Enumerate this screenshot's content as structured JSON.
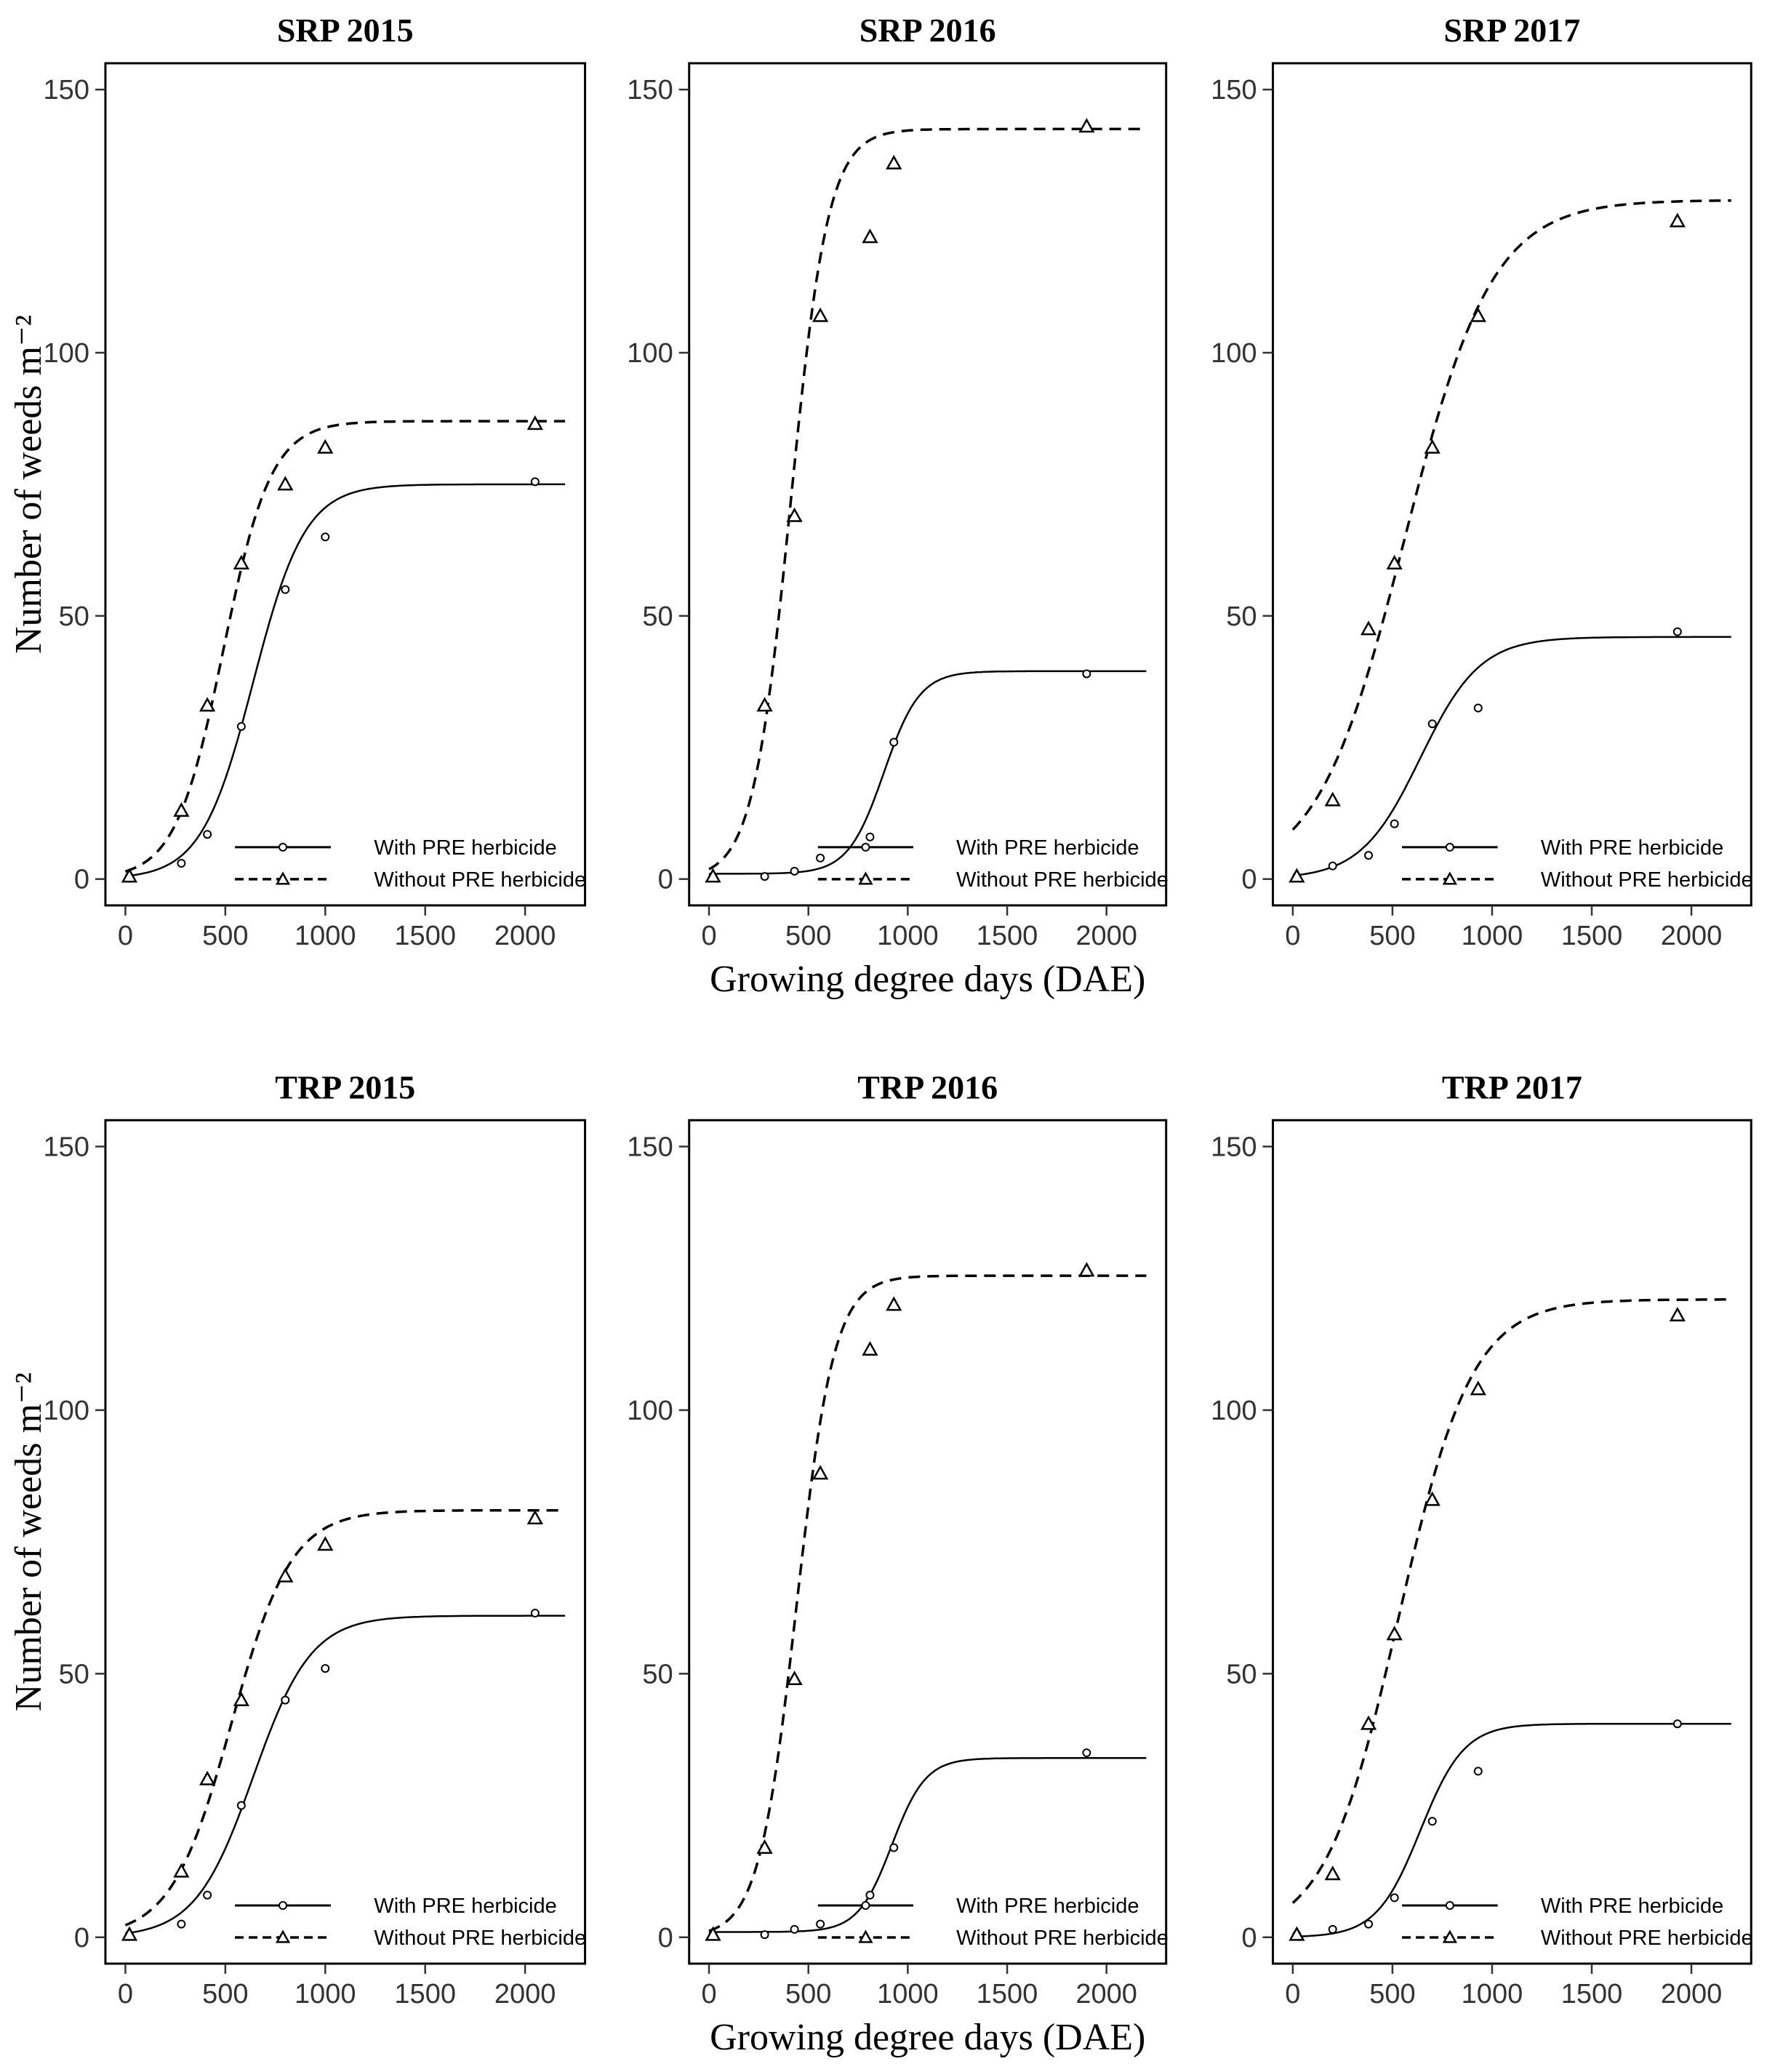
{
  "chart_data": [
    {
      "type": "line",
      "title": "SRP 2015",
      "ylabel": "Number of weeds m⁻²",
      "xlabel": "",
      "xlim": [
        -100,
        2300
      ],
      "ylim": [
        -5,
        155
      ],
      "xticks": [
        "0",
        "500",
        "1000",
        "1500",
        "2000"
      ],
      "yticks": [
        "0",
        "50",
        "100",
        "150"
      ],
      "grid": false,
      "legend_position": "bottom-right",
      "series": [
        {
          "name": "With PRE herbicide",
          "line": "solid",
          "marker": "circle",
          "points": [
            [
              20,
              0.5
            ],
            [
              280,
              3
            ],
            [
              410,
              8.5
            ],
            [
              580,
              29
            ],
            [
              800,
              55
            ],
            [
              1000,
              65
            ],
            [
              2050,
              75.5
            ]
          ],
          "curve": {
            "asym": 75,
            "mid": 640,
            "scale": 130
          }
        },
        {
          "name": "Without PRE herbicide",
          "line": "dashed",
          "marker": "triangle",
          "points": [
            [
              20,
              0.5
            ],
            [
              280,
              13
            ],
            [
              410,
              33
            ],
            [
              580,
              60
            ],
            [
              800,
              75
            ],
            [
              1000,
              82
            ],
            [
              2050,
              86.5
            ]
          ],
          "curve": {
            "asym": 87,
            "mid": 490,
            "scale": 120
          }
        }
      ]
    },
    {
      "type": "line",
      "title": "SRP 2016",
      "ylabel": "",
      "xlabel": "Growing degree days (DAE)",
      "xlim": [
        -100,
        2300
      ],
      "ylim": [
        -5,
        155
      ],
      "xticks": [
        "0",
        "500",
        "1000",
        "1500",
        "2000"
      ],
      "yticks": [
        "0",
        "50",
        "100",
        "150"
      ],
      "grid": false,
      "legend_position": "bottom-right",
      "series": [
        {
          "name": "With PRE herbicide",
          "line": "solid",
          "marker": "circle",
          "points": [
            [
              20,
              0.5
            ],
            [
              280,
              0.5
            ],
            [
              430,
              1.5
            ],
            [
              560,
              4
            ],
            [
              810,
              8
            ],
            [
              930,
              26
            ],
            [
              1900,
              39
            ]
          ],
          "curve": {
            "asym": 39.5,
            "mid": 880,
            "scale": 90,
            "base": 1
          }
        },
        {
          "name": "Without PRE herbicide",
          "line": "dashed",
          "marker": "triangle",
          "points": [
            [
              20,
              0.5
            ],
            [
              280,
              33
            ],
            [
              430,
              69
            ],
            [
              560,
              107
            ],
            [
              810,
              122
            ],
            [
              930,
              136
            ],
            [
              1900,
              143
            ]
          ],
          "curve": {
            "asym": 142.5,
            "mid": 410,
            "scale": 95
          }
        }
      ]
    },
    {
      "type": "line",
      "title": "SRP 2017",
      "ylabel": "",
      "xlabel": "",
      "xlim": [
        -100,
        2300
      ],
      "ylim": [
        -5,
        155
      ],
      "xticks": [
        "0",
        "500",
        "1000",
        "1500",
        "2000"
      ],
      "yticks": [
        "0",
        "50",
        "100",
        "150"
      ],
      "grid": false,
      "legend_position": "bottom-right",
      "series": [
        {
          "name": "With PRE herbicide",
          "line": "solid",
          "marker": "circle",
          "points": [
            [
              20,
              0.5
            ],
            [
              200,
              2.5
            ],
            [
              380,
              4.5
            ],
            [
              510,
              10.5
            ],
            [
              700,
              29.5
            ],
            [
              930,
              32.5
            ],
            [
              1930,
              47
            ]
          ],
          "curve": {
            "asym": 46,
            "mid": 640,
            "scale": 150
          }
        },
        {
          "name": "Without PRE herbicide",
          "line": "dashed",
          "marker": "triangle",
          "points": [
            [
              20,
              0.5
            ],
            [
              200,
              15
            ],
            [
              380,
              47.5
            ],
            [
              510,
              60
            ],
            [
              700,
              82
            ],
            [
              930,
              107
            ],
            [
              1930,
              125
            ]
          ],
          "curve": {
            "asym": 129,
            "mid": 560,
            "scale": 220
          }
        }
      ]
    },
    {
      "type": "line",
      "title": "TRP 2015",
      "ylabel": "Number of weeds m⁻²",
      "xlabel": "",
      "xlim": [
        -100,
        2300
      ],
      "ylim": [
        -5,
        155
      ],
      "xticks": [
        "0",
        "500",
        "1000",
        "1500",
        "2000"
      ],
      "yticks": [
        "0",
        "50",
        "100",
        "150"
      ],
      "grid": false,
      "legend_position": "bottom-right",
      "series": [
        {
          "name": "With PRE herbicide",
          "line": "solid",
          "marker": "circle",
          "points": [
            [
              20,
              0.5
            ],
            [
              280,
              2.5
            ],
            [
              410,
              8
            ],
            [
              580,
              25
            ],
            [
              800,
              45
            ],
            [
              1000,
              51
            ],
            [
              2050,
              61.5
            ]
          ],
          "curve": {
            "asym": 61,
            "mid": 640,
            "scale": 145
          }
        },
        {
          "name": "Without PRE herbicide",
          "line": "dashed",
          "marker": "triangle",
          "points": [
            [
              20,
              0.5
            ],
            [
              280,
              12.5
            ],
            [
              410,
              30
            ],
            [
              580,
              45
            ],
            [
              800,
              68.5
            ],
            [
              1000,
              74.5
            ],
            [
              2050,
              79.5
            ]
          ],
          "curve": {
            "asym": 81,
            "mid": 530,
            "scale": 150
          }
        }
      ]
    },
    {
      "type": "line",
      "title": "TRP 2016",
      "ylabel": "",
      "xlabel": "Growing degree days (DAE)",
      "xlim": [
        -100,
        2300
      ],
      "ylim": [
        -5,
        155
      ],
      "xticks": [
        "0",
        "500",
        "1000",
        "1500",
        "2000"
      ],
      "yticks": [
        "0",
        "50",
        "100",
        "150"
      ],
      "grid": false,
      "legend_position": "bottom-right",
      "series": [
        {
          "name": "With PRE herbicide",
          "line": "solid",
          "marker": "circle",
          "points": [
            [
              20,
              0.5
            ],
            [
              280,
              0.5
            ],
            [
              430,
              1.5
            ],
            [
              560,
              2.5
            ],
            [
              810,
              8
            ],
            [
              930,
              17
            ],
            [
              1900,
              35
            ]
          ],
          "curve": {
            "asym": 34,
            "mid": 920,
            "scale": 85,
            "base": 1
          }
        },
        {
          "name": "Without PRE herbicide",
          "line": "dashed",
          "marker": "triangle",
          "points": [
            [
              20,
              0.5
            ],
            [
              280,
              17
            ],
            [
              430,
              49
            ],
            [
              560,
              88
            ],
            [
              810,
              111.5
            ],
            [
              930,
              120
            ],
            [
              1900,
              126.5
            ]
          ],
          "curve": {
            "asym": 125.5,
            "mid": 440,
            "scale": 95
          }
        }
      ]
    },
    {
      "type": "line",
      "title": "TRP 2017",
      "ylabel": "",
      "xlabel": "",
      "xlim": [
        -100,
        2300
      ],
      "ylim": [
        -5,
        155
      ],
      "xticks": [
        "0",
        "500",
        "1000",
        "1500",
        "2000"
      ],
      "yticks": [
        "0",
        "50",
        "100",
        "150"
      ],
      "grid": false,
      "legend_position": "bottom-right",
      "series": [
        {
          "name": "With PRE herbicide",
          "line": "solid",
          "marker": "circle",
          "points": [
            [
              20,
              0.5
            ],
            [
              200,
              1.5
            ],
            [
              380,
              2.5
            ],
            [
              510,
              7.5
            ],
            [
              700,
              22
            ],
            [
              930,
              31.5
            ],
            [
              1930,
              40.5
            ]
          ],
          "curve": {
            "asym": 40.5,
            "mid": 640,
            "scale": 110
          }
        },
        {
          "name": "Without PRE herbicide",
          "line": "dashed",
          "marker": "triangle",
          "points": [
            [
              20,
              0.5
            ],
            [
              200,
              12
            ],
            [
              380,
              40.5
            ],
            [
              510,
              57.5
            ],
            [
              700,
              83
            ],
            [
              930,
              104
            ],
            [
              1930,
              118
            ]
          ],
          "curve": {
            "asym": 121,
            "mid": 530,
            "scale": 185
          }
        }
      ]
    }
  ]
}
